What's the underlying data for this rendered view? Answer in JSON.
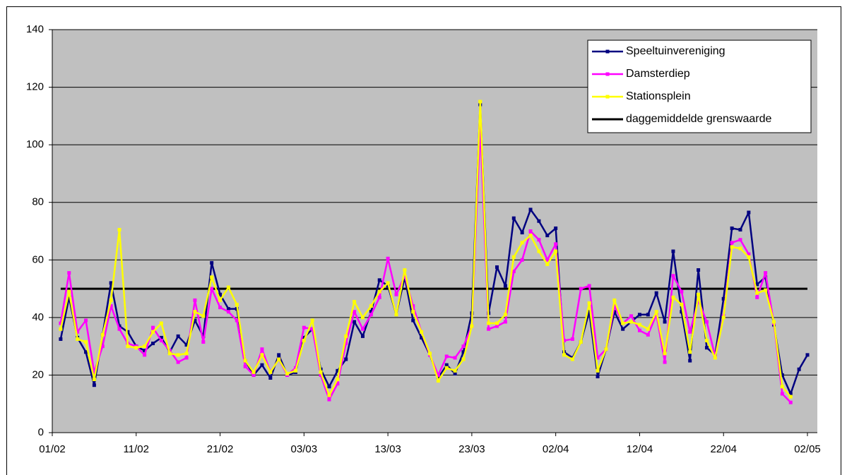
{
  "chart_data": {
    "type": "line",
    "categories": [
      "01/02",
      null,
      null,
      null,
      null,
      null,
      null,
      null,
      null,
      null,
      "11/02",
      null,
      null,
      null,
      null,
      null,
      null,
      null,
      null,
      null,
      "21/02",
      null,
      null,
      null,
      null,
      null,
      null,
      null,
      null,
      null,
      "03/03",
      null,
      null,
      null,
      null,
      null,
      null,
      null,
      null,
      null,
      "13/03",
      null,
      null,
      null,
      null,
      null,
      null,
      null,
      null,
      null,
      "23/03",
      null,
      null,
      null,
      null,
      null,
      null,
      null,
      null,
      null,
      "02/04",
      null,
      null,
      null,
      null,
      null,
      null,
      null,
      null,
      null,
      "12/04",
      null,
      null,
      null,
      null,
      null,
      null,
      null,
      null,
      null,
      "22/04",
      null,
      null,
      null,
      null,
      null,
      null,
      null,
      null,
      null,
      "02/05"
    ],
    "series": [
      {
        "name": "Speeltuinvereniging",
        "color": "#000080",
        "values": [
          null,
          32.5,
          47,
          33,
          28,
          16.5,
          34,
          52,
          37,
          35,
          30,
          28.5,
          31,
          33,
          28,
          33.5,
          30.5,
          39,
          33.5,
          59,
          48,
          43,
          43,
          25,
          20,
          23.5,
          19,
          27,
          20,
          21,
          33,
          36,
          22,
          16,
          21.5,
          25.5,
          38.5,
          33.5,
          42,
          53,
          51,
          41,
          54,
          39,
          33,
          27,
          19,
          23.5,
          20.5,
          28,
          41.5,
          114,
          41.5,
          57.5,
          51,
          74.5,
          69.5,
          77.5,
          73.5,
          68.5,
          71,
          28,
          26,
          31.5,
          42,
          19.5,
          29,
          42,
          36,
          38.5,
          41,
          41,
          48.5,
          38.5,
          63,
          42,
          25,
          56.5,
          29.5,
          27,
          46.5,
          71,
          70.5,
          76.5,
          51.5,
          54,
          37.5,
          20,
          13.5,
          22,
          27
        ]
      },
      {
        "name": "Damsterdiep",
        "color": "#ff00ff",
        "values": [
          null,
          38,
          55.5,
          35,
          39,
          21,
          30,
          44,
          36,
          31,
          30,
          27,
          36.5,
          32,
          28.5,
          24.5,
          26,
          46,
          31.5,
          50,
          43.5,
          42,
          39,
          23,
          20,
          29,
          21,
          25.5,
          20,
          22.5,
          36.5,
          36,
          20,
          11.5,
          17,
          31,
          42,
          36,
          41,
          47,
          60.5,
          48,
          54.5,
          44,
          35,
          27,
          20,
          26.5,
          26,
          30,
          37,
          106.5,
          36,
          37,
          38.5,
          56,
          60,
          70,
          67,
          60,
          65.5,
          32,
          32.5,
          50,
          51,
          26,
          29,
          44,
          38,
          40.5,
          35.5,
          34,
          41,
          24.5,
          54.5,
          49,
          35,
          46,
          38.5,
          26.5,
          40.5,
          66,
          67,
          62,
          47,
          55.5,
          38,
          13.5,
          10.5,
          null,
          null
        ]
      },
      {
        "name": "Stationsplein",
        "color": "#ffff00",
        "values": [
          null,
          36,
          49,
          32.5,
          31.5,
          18.5,
          34,
          46,
          70.5,
          30,
          29.5,
          30,
          35,
          38,
          27.5,
          27,
          27.5,
          42,
          40.5,
          54,
          46,
          50.5,
          44.5,
          25,
          21,
          27,
          21,
          25.5,
          20.5,
          21.5,
          32,
          39,
          21,
          13,
          18.5,
          33.5,
          45.5,
          40,
          44,
          49,
          52,
          41,
          56.5,
          42,
          35,
          27.5,
          18,
          22.5,
          21.5,
          25.5,
          37,
          115,
          38,
          38,
          41,
          61,
          66,
          68.5,
          63,
          58.5,
          63,
          27,
          25.5,
          31.5,
          45,
          21.5,
          29,
          46,
          38,
          38.5,
          37.5,
          36,
          42,
          27.5,
          47,
          44.5,
          28,
          48,
          32,
          26,
          40,
          64.5,
          64,
          61,
          48.5,
          49.5,
          38.5,
          16,
          12.5,
          null,
          null
        ]
      }
    ],
    "reference_line": {
      "name": "daggemiddelde grenswaarde",
      "value": 50,
      "color": "#000000"
    },
    "ylim": [
      0,
      140
    ],
    "yticks": [
      0,
      20,
      40,
      60,
      80,
      100,
      120,
      140
    ],
    "grid": true,
    "plot_color": "#c0c0c0",
    "legend": "top-right"
  }
}
